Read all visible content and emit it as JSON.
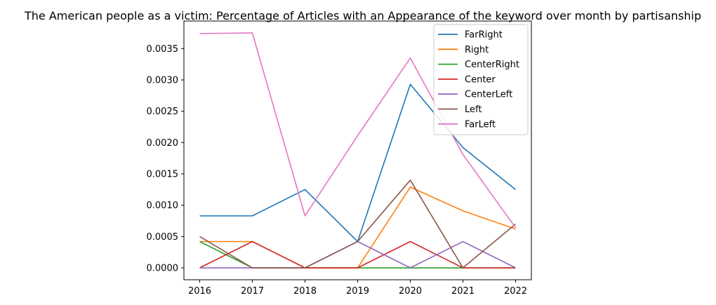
{
  "chart_data": {
    "type": "line",
    "title": "The American people as a victim: Percentage of Articles with an Appearance of the keyword over month by partisanship",
    "xlabel": "",
    "ylabel": "",
    "x": [
      2016,
      2017,
      2018,
      2019,
      2020,
      2021,
      2022
    ],
    "x_ticks": [
      "2016",
      "2017",
      "2018",
      "2019",
      "2020",
      "2021",
      "2022"
    ],
    "xlim": [
      2015.7,
      2022.3
    ],
    "ylim": [
      -0.00019,
      0.00394
    ],
    "y_ticks": [
      "0.0000",
      "0.0005",
      "0.0010",
      "0.0015",
      "0.0020",
      "0.0025",
      "0.0030",
      "0.0035"
    ],
    "y_tick_values": [
      0,
      0.0005,
      0.001,
      0.0015,
      0.002,
      0.0025,
      0.003,
      0.0035
    ],
    "grid": false,
    "legend_position": "top-right",
    "series": [
      {
        "name": "FarRight",
        "color": "#1f77b4",
        "values": [
          0.00083,
          0.00083,
          0.00125,
          0.00042,
          0.00293,
          0.00192,
          0.00125
        ]
      },
      {
        "name": "Right",
        "color": "#ff7f0e",
        "values": [
          0.00042,
          0.00042,
          0.0,
          0.0,
          0.00129,
          0.00091,
          0.00062
        ]
      },
      {
        "name": "CenterRight",
        "color": "#2ca02c",
        "values": [
          0.00042,
          0.0,
          0.0,
          0.0,
          0.0,
          0.0,
          0.0
        ]
      },
      {
        "name": "Center",
        "color": "#d62728",
        "values": [
          0.0,
          0.00042,
          0.0,
          0.0,
          0.00042,
          0.0,
          0.0
        ]
      },
      {
        "name": "CenterLeft",
        "color": "#9467bd",
        "values": [
          0.0,
          0.0,
          0.0,
          0.00042,
          0.0,
          0.00042,
          0.0
        ]
      },
      {
        "name": "Left",
        "color": "#8c564b",
        "values": [
          0.0005,
          0.0,
          0.0,
          0.00042,
          0.0014,
          0.0,
          0.0007
        ]
      },
      {
        "name": "FarLeft",
        "color": "#e377c2",
        "values": [
          0.00374,
          0.00375,
          0.00083,
          0.00211,
          0.00335,
          0.00181,
          0.00064
        ]
      }
    ]
  }
}
